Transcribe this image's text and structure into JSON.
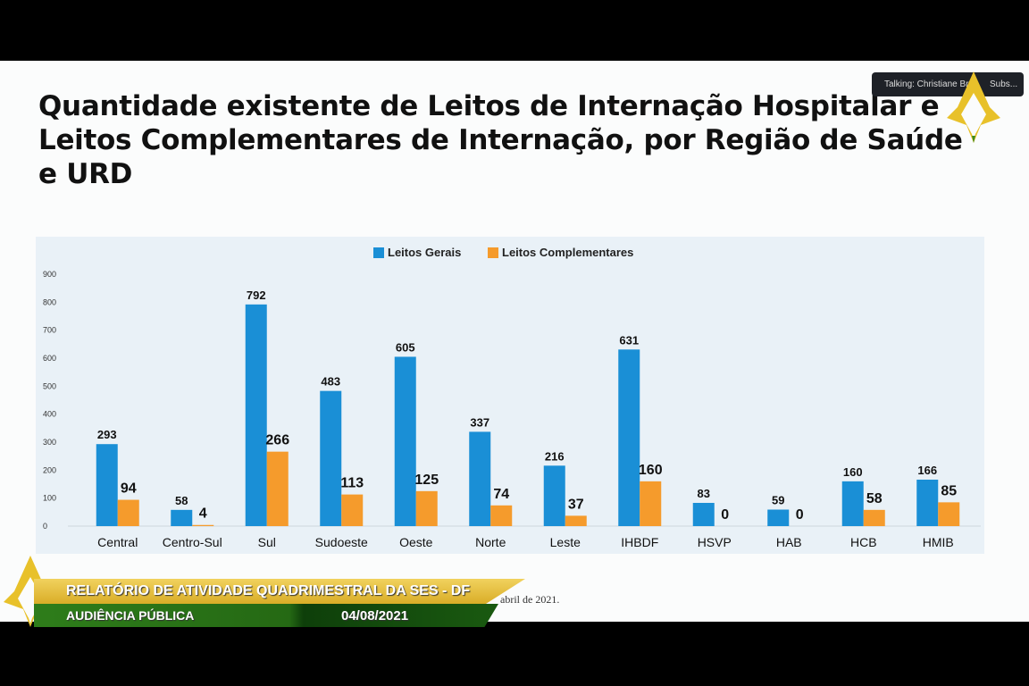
{
  "slide_title": "Quantidade existente de Leitos de Internação Hospitalar e Leitos Complementares de Internação, por Região de Saúde e URD",
  "zoom_bar": {
    "talking": "Talking: Christiane Br...",
    "subs": "Subs..."
  },
  "banner": {
    "line1": "RELATÓRIO DE ATIVIDADE QUADRIMESTRAL DA SES - DF",
    "line2": "AUDIÊNCIA PÚBLICA",
    "date": "04/08/2021"
  },
  "footnote": "abril de 2021.",
  "colors": {
    "blue": "#1a8fd6",
    "orange": "#f59b2c"
  },
  "chart_data": {
    "type": "bar",
    "categories": [
      "Central",
      "Centro-Sul",
      "Sul",
      "Sudoeste",
      "Oeste",
      "Norte",
      "Leste",
      "IHBDF",
      "HSVP",
      "HAB",
      "HCB",
      "HMIB"
    ],
    "series": [
      {
        "name": "Leitos Gerais",
        "values": [
          293,
          58,
          792,
          483,
          605,
          337,
          216,
          631,
          83,
          59,
          160,
          166
        ]
      },
      {
        "name": "Leitos Complementares",
        "values": [
          94,
          4,
          266,
          113,
          125,
          74,
          37,
          160,
          0,
          0,
          58,
          85
        ]
      }
    ],
    "yticks": [
      0,
      100,
      200,
      300,
      400,
      500,
      600,
      700,
      800,
      900
    ],
    "ylim": [
      0,
      900
    ],
    "legend": "top-center",
    "grid": false
  }
}
